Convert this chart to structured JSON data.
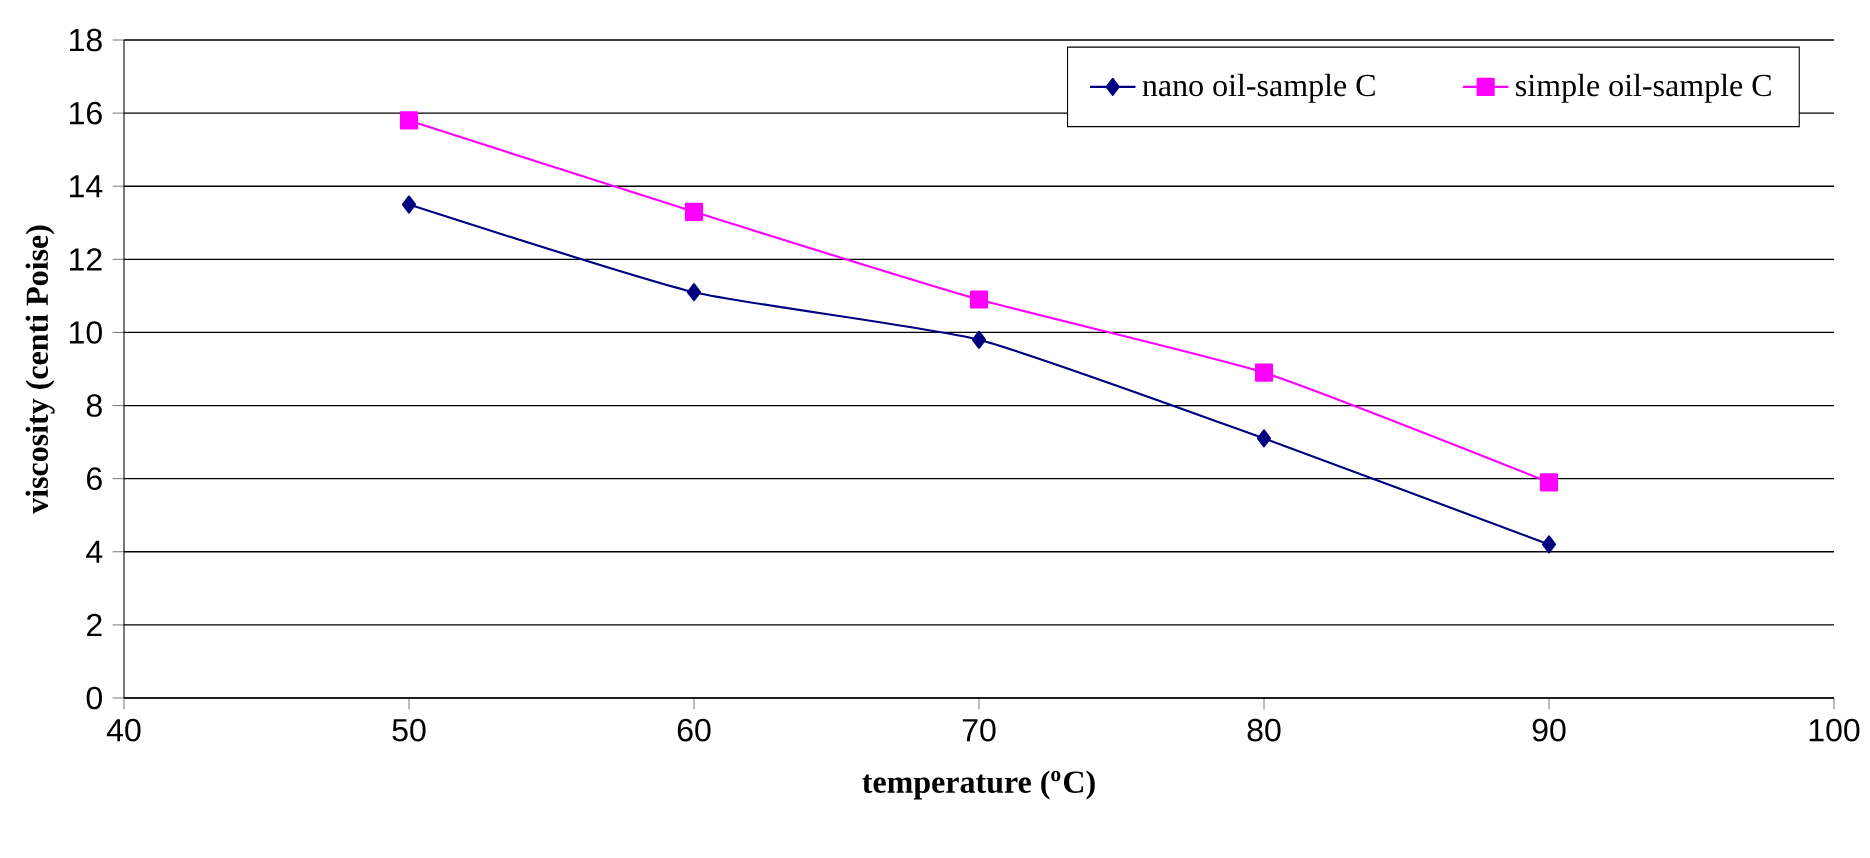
{
  "chart_data": {
    "type": "line",
    "xlabel": "temperature ($^{o}$C)",
    "ylabel": "viscosity (centi Poise)",
    "x": [
      50,
      60,
      70,
      80,
      90
    ],
    "series": [
      {
        "name": "nano oil-sample C",
        "color": "#000080",
        "marker": "diamond",
        "values": [
          13.5,
          11.1,
          9.8,
          7.1,
          4.2
        ]
      },
      {
        "name": "simple oil-sample C",
        "color": "#ff00ff",
        "marker": "square",
        "values": [
          15.8,
          13.3,
          10.9,
          8.9,
          5.9
        ]
      }
    ],
    "xlim": [
      40,
      100
    ],
    "ylim": [
      0,
      18
    ],
    "xticks": [
      40,
      50,
      60,
      70,
      80,
      90,
      100
    ],
    "yticks": [
      0,
      2,
      4,
      6,
      8,
      10,
      12,
      14,
      16,
      18
    ],
    "grid": "y",
    "legend": "top right"
  }
}
